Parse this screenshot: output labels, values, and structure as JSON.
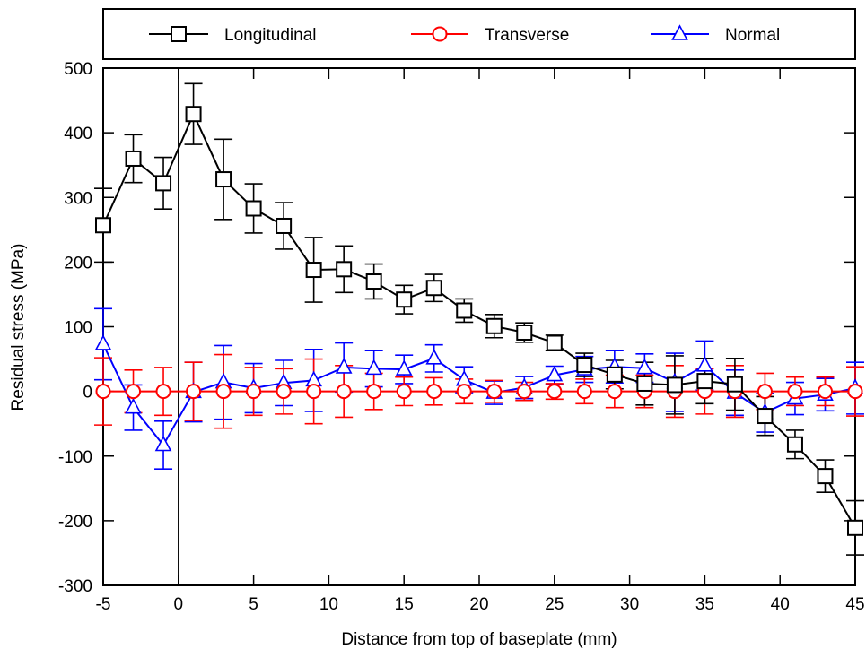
{
  "chart_data": {
    "type": "line",
    "title": "",
    "xlabel": "Distance from top of baseplate (mm)",
    "ylabel": "Residual stress (MPa)",
    "xlim": [
      -5,
      45
    ],
    "ylim": [
      -300,
      500
    ],
    "xticks": [
      -5,
      0,
      5,
      10,
      15,
      20,
      25,
      30,
      35,
      40,
      45
    ],
    "yticks": [
      -300,
      -200,
      -100,
      0,
      100,
      200,
      300,
      400,
      500
    ],
    "vline_x": 0,
    "grid": false,
    "legend_position": "top",
    "series": [
      {
        "name": "Longitudinal",
        "color": "#000000",
        "marker": "square",
        "x": [
          -5,
          -3,
          -1,
          1,
          3,
          5,
          7,
          9,
          11,
          13,
          15,
          17,
          19,
          21,
          23,
          25,
          27,
          29,
          31,
          33,
          35,
          37,
          39,
          41,
          43,
          45
        ],
        "y": [
          257,
          360,
          322,
          429,
          328,
          283,
          256,
          188,
          189,
          170,
          142,
          160,
          125,
          101,
          91,
          75,
          41,
          26,
          12,
          10,
          16,
          11,
          -38,
          -82,
          -131,
          -211
        ],
        "err": [
          57,
          37,
          40,
          47,
          62,
          38,
          36,
          50,
          36,
          27,
          22,
          21,
          18,
          18,
          15,
          12,
          18,
          22,
          33,
          45,
          35,
          40,
          30,
          22,
          25,
          42
        ]
      },
      {
        "name": "Transverse",
        "color": "#ff0000",
        "marker": "circle",
        "x": [
          -5,
          -3,
          -1,
          1,
          3,
          5,
          7,
          9,
          11,
          13,
          15,
          17,
          19,
          21,
          23,
          25,
          27,
          29,
          31,
          33,
          35,
          37,
          39,
          41,
          43,
          45
        ],
        "y": [
          0,
          0,
          0,
          0,
          0,
          0,
          0,
          0,
          0,
          0,
          0,
          0,
          0,
          0,
          0,
          0,
          0,
          0,
          0,
          0,
          0,
          0,
          0,
          0,
          0,
          0
        ],
        "err": [
          52,
          33,
          37,
          45,
          57,
          37,
          35,
          50,
          40,
          28,
          22,
          21,
          19,
          17,
          14,
          12,
          19,
          25,
          25,
          40,
          35,
          40,
          28,
          22,
          22,
          38
        ]
      },
      {
        "name": "Normal",
        "color": "#0000ff",
        "marker": "triangle",
        "x": [
          -5,
          -3,
          -1,
          1,
          3,
          5,
          7,
          9,
          11,
          13,
          15,
          17,
          19,
          21,
          23,
          25,
          27,
          29,
          31,
          33,
          35,
          37,
          39,
          41,
          43,
          45
        ],
        "y": [
          73,
          -25,
          -83,
          -1,
          14,
          5,
          13,
          17,
          37,
          35,
          34,
          51,
          18,
          -2,
          6,
          25,
          34,
          38,
          36,
          14,
          40,
          -2,
          -33,
          -11,
          -5,
          5
        ],
        "err": [
          55,
          35,
          37,
          46,
          57,
          38,
          35,
          48,
          38,
          28,
          22,
          21,
          20,
          18,
          17,
          14,
          20,
          25,
          22,
          45,
          38,
          35,
          30,
          25,
          25,
          40
        ]
      }
    ]
  }
}
